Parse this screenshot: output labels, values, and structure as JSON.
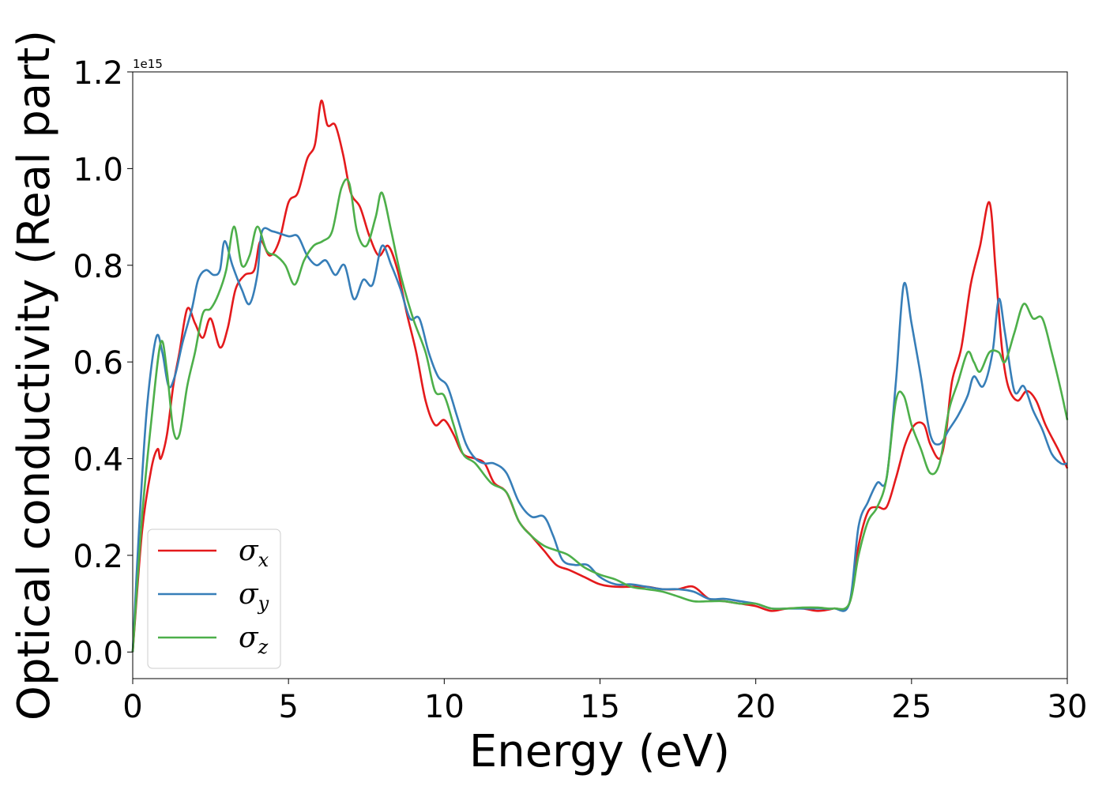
{
  "chart_data": {
    "type": "line",
    "xlabel": "Energy (eV)",
    "ylabel": "Optical conductivity (Real part)",
    "y_offset_label": "1e15",
    "xlim": [
      0,
      30
    ],
    "ylim": [
      -0.055,
      1.2
    ],
    "y_scale": 1000000000000000.0,
    "x_ticks": [
      0,
      5,
      10,
      15,
      20,
      25,
      30
    ],
    "x_tick_labels": [
      "0",
      "5",
      "10",
      "15",
      "20",
      "25",
      "30"
    ],
    "y_ticks": [
      0.0,
      0.2,
      0.4,
      0.6,
      0.8,
      1.0,
      1.2
    ],
    "y_tick_labels": [
      "0.0",
      "0.2",
      "0.4",
      "0.6",
      "0.8",
      "1.0",
      "1.2"
    ],
    "grid": false,
    "legend_position": "lower-left",
    "series": [
      {
        "name": "σx",
        "symbol": "σ",
        "subscript": "x",
        "color": "#e41a1c",
        "points": [
          [
            0,
            0.0
          ],
          [
            0.3,
            0.25
          ],
          [
            0.6,
            0.38
          ],
          [
            0.8,
            0.42
          ],
          [
            0.9,
            0.4
          ],
          [
            1.1,
            0.45
          ],
          [
            1.3,
            0.55
          ],
          [
            1.5,
            0.62
          ],
          [
            1.75,
            0.71
          ],
          [
            2.0,
            0.68
          ],
          [
            2.25,
            0.65
          ],
          [
            2.5,
            0.69
          ],
          [
            2.8,
            0.63
          ],
          [
            3.05,
            0.67
          ],
          [
            3.3,
            0.75
          ],
          [
            3.6,
            0.78
          ],
          [
            3.9,
            0.79
          ],
          [
            4.1,
            0.85
          ],
          [
            4.4,
            0.82
          ],
          [
            4.7,
            0.85
          ],
          [
            5.0,
            0.93
          ],
          [
            5.3,
            0.95
          ],
          [
            5.6,
            1.02
          ],
          [
            5.85,
            1.05
          ],
          [
            6.05,
            1.14
          ],
          [
            6.25,
            1.09
          ],
          [
            6.5,
            1.09
          ],
          [
            6.75,
            1.03
          ],
          [
            7.0,
            0.95
          ],
          [
            7.3,
            0.92
          ],
          [
            7.6,
            0.86
          ],
          [
            7.9,
            0.82
          ],
          [
            8.2,
            0.84
          ],
          [
            8.5,
            0.79
          ],
          [
            8.8,
            0.7
          ],
          [
            9.1,
            0.62
          ],
          [
            9.4,
            0.52
          ],
          [
            9.7,
            0.47
          ],
          [
            10.0,
            0.48
          ],
          [
            10.3,
            0.45
          ],
          [
            10.6,
            0.41
          ],
          [
            11.0,
            0.4
          ],
          [
            11.3,
            0.39
          ],
          [
            11.6,
            0.35
          ],
          [
            12.0,
            0.33
          ],
          [
            12.4,
            0.27
          ],
          [
            12.8,
            0.24
          ],
          [
            13.2,
            0.21
          ],
          [
            13.6,
            0.18
          ],
          [
            14.0,
            0.17
          ],
          [
            14.5,
            0.155
          ],
          [
            15.0,
            0.14
          ],
          [
            15.5,
            0.135
          ],
          [
            16.0,
            0.135
          ],
          [
            16.5,
            0.135
          ],
          [
            17.0,
            0.13
          ],
          [
            17.5,
            0.13
          ],
          [
            18.0,
            0.135
          ],
          [
            18.5,
            0.11
          ],
          [
            19.0,
            0.105
          ],
          [
            19.5,
            0.1
          ],
          [
            20.0,
            0.095
          ],
          [
            20.5,
            0.085
          ],
          [
            21.0,
            0.09
          ],
          [
            21.5,
            0.09
          ],
          [
            22.0,
            0.085
          ],
          [
            22.5,
            0.09
          ],
          [
            23.0,
            0.1
          ],
          [
            23.3,
            0.22
          ],
          [
            23.6,
            0.29
          ],
          [
            23.9,
            0.3
          ],
          [
            24.2,
            0.3
          ],
          [
            24.5,
            0.36
          ],
          [
            24.8,
            0.43
          ],
          [
            25.1,
            0.47
          ],
          [
            25.4,
            0.47
          ],
          [
            25.6,
            0.43
          ],
          [
            25.9,
            0.4
          ],
          [
            26.1,
            0.45
          ],
          [
            26.3,
            0.56
          ],
          [
            26.6,
            0.63
          ],
          [
            26.9,
            0.76
          ],
          [
            27.2,
            0.84
          ],
          [
            27.5,
            0.93
          ],
          [
            27.7,
            0.79
          ],
          [
            27.9,
            0.63
          ],
          [
            28.1,
            0.55
          ],
          [
            28.4,
            0.52
          ],
          [
            28.7,
            0.54
          ],
          [
            29.0,
            0.52
          ],
          [
            29.3,
            0.47
          ],
          [
            29.7,
            0.42
          ],
          [
            30.0,
            0.38
          ]
        ]
      },
      {
        "name": "σy",
        "symbol": "σ",
        "subscript": "y",
        "color": "#377eb8",
        "points": [
          [
            0,
            0.0
          ],
          [
            0.2,
            0.25
          ],
          [
            0.45,
            0.5
          ],
          [
            0.75,
            0.65
          ],
          [
            0.95,
            0.62
          ],
          [
            1.15,
            0.55
          ],
          [
            1.35,
            0.57
          ],
          [
            1.6,
            0.64
          ],
          [
            1.9,
            0.71
          ],
          [
            2.1,
            0.77
          ],
          [
            2.35,
            0.79
          ],
          [
            2.6,
            0.78
          ],
          [
            2.8,
            0.79
          ],
          [
            2.95,
            0.85
          ],
          [
            3.2,
            0.8
          ],
          [
            3.5,
            0.75
          ],
          [
            3.75,
            0.72
          ],
          [
            4.0,
            0.78
          ],
          [
            4.15,
            0.87
          ],
          [
            4.5,
            0.87
          ],
          [
            5.0,
            0.86
          ],
          [
            5.3,
            0.86
          ],
          [
            5.6,
            0.82
          ],
          [
            5.9,
            0.8
          ],
          [
            6.2,
            0.81
          ],
          [
            6.5,
            0.78
          ],
          [
            6.8,
            0.8
          ],
          [
            7.1,
            0.73
          ],
          [
            7.4,
            0.77
          ],
          [
            7.7,
            0.76
          ],
          [
            8.0,
            0.84
          ],
          [
            8.3,
            0.8
          ],
          [
            8.6,
            0.75
          ],
          [
            8.9,
            0.69
          ],
          [
            9.2,
            0.69
          ],
          [
            9.5,
            0.62
          ],
          [
            9.8,
            0.57
          ],
          [
            10.1,
            0.55
          ],
          [
            10.4,
            0.49
          ],
          [
            10.7,
            0.43
          ],
          [
            11.0,
            0.4
          ],
          [
            11.3,
            0.39
          ],
          [
            11.6,
            0.39
          ],
          [
            12.0,
            0.37
          ],
          [
            12.4,
            0.31
          ],
          [
            12.8,
            0.28
          ],
          [
            13.2,
            0.28
          ],
          [
            13.5,
            0.24
          ],
          [
            13.8,
            0.19
          ],
          [
            14.2,
            0.18
          ],
          [
            14.6,
            0.18
          ],
          [
            15.0,
            0.155
          ],
          [
            15.5,
            0.14
          ],
          [
            16.0,
            0.14
          ],
          [
            16.5,
            0.135
          ],
          [
            17.0,
            0.13
          ],
          [
            17.5,
            0.13
          ],
          [
            18.0,
            0.125
          ],
          [
            18.5,
            0.11
          ],
          [
            19.0,
            0.11
          ],
          [
            19.5,
            0.105
          ],
          [
            20.0,
            0.1
          ],
          [
            20.5,
            0.09
          ],
          [
            21.0,
            0.09
          ],
          [
            21.5,
            0.09
          ],
          [
            22.0,
            0.09
          ],
          [
            22.5,
            0.09
          ],
          [
            23.0,
            0.1
          ],
          [
            23.3,
            0.26
          ],
          [
            23.6,
            0.31
          ],
          [
            23.9,
            0.35
          ],
          [
            24.2,
            0.36
          ],
          [
            24.5,
            0.56
          ],
          [
            24.75,
            0.76
          ],
          [
            25.0,
            0.68
          ],
          [
            25.3,
            0.57
          ],
          [
            25.6,
            0.45
          ],
          [
            25.9,
            0.43
          ],
          [
            26.2,
            0.46
          ],
          [
            26.5,
            0.49
          ],
          [
            26.8,
            0.53
          ],
          [
            27.0,
            0.57
          ],
          [
            27.3,
            0.55
          ],
          [
            27.6,
            0.62
          ],
          [
            27.8,
            0.73
          ],
          [
            28.0,
            0.66
          ],
          [
            28.3,
            0.54
          ],
          [
            28.6,
            0.55
          ],
          [
            28.9,
            0.5
          ],
          [
            29.2,
            0.46
          ],
          [
            29.5,
            0.41
          ],
          [
            29.8,
            0.39
          ],
          [
            30.0,
            0.39
          ]
        ]
      },
      {
        "name": "σz",
        "symbol": "σ",
        "subscript": "z",
        "color": "#4daf4a",
        "points": [
          [
            0,
            0.0
          ],
          [
            0.3,
            0.28
          ],
          [
            0.6,
            0.48
          ],
          [
            0.9,
            0.64
          ],
          [
            1.1,
            0.58
          ],
          [
            1.3,
            0.46
          ],
          [
            1.5,
            0.45
          ],
          [
            1.75,
            0.55
          ],
          [
            2.0,
            0.62
          ],
          [
            2.25,
            0.7
          ],
          [
            2.5,
            0.71
          ],
          [
            2.75,
            0.74
          ],
          [
            3.0,
            0.79
          ],
          [
            3.25,
            0.88
          ],
          [
            3.5,
            0.8
          ],
          [
            3.75,
            0.82
          ],
          [
            4.0,
            0.88
          ],
          [
            4.3,
            0.83
          ],
          [
            4.6,
            0.82
          ],
          [
            4.9,
            0.8
          ],
          [
            5.2,
            0.76
          ],
          [
            5.5,
            0.81
          ],
          [
            5.8,
            0.84
          ],
          [
            6.1,
            0.85
          ],
          [
            6.4,
            0.87
          ],
          [
            6.7,
            0.96
          ],
          [
            6.95,
            0.97
          ],
          [
            7.2,
            0.87
          ],
          [
            7.5,
            0.84
          ],
          [
            7.8,
            0.9
          ],
          [
            8.0,
            0.95
          ],
          [
            8.3,
            0.87
          ],
          [
            8.6,
            0.78
          ],
          [
            9.0,
            0.69
          ],
          [
            9.4,
            0.62
          ],
          [
            9.7,
            0.54
          ],
          [
            10.0,
            0.53
          ],
          [
            10.3,
            0.47
          ],
          [
            10.6,
            0.41
          ],
          [
            11.0,
            0.39
          ],
          [
            11.5,
            0.35
          ],
          [
            12.0,
            0.33
          ],
          [
            12.4,
            0.27
          ],
          [
            12.8,
            0.24
          ],
          [
            13.2,
            0.22
          ],
          [
            13.6,
            0.21
          ],
          [
            14.0,
            0.2
          ],
          [
            14.5,
            0.175
          ],
          [
            15.0,
            0.16
          ],
          [
            15.5,
            0.15
          ],
          [
            16.0,
            0.135
          ],
          [
            16.5,
            0.13
          ],
          [
            17.0,
            0.125
          ],
          [
            17.5,
            0.115
          ],
          [
            18.0,
            0.105
          ],
          [
            18.5,
            0.105
          ],
          [
            19.0,
            0.105
          ],
          [
            19.5,
            0.1
          ],
          [
            20.0,
            0.1
          ],
          [
            20.5,
            0.09
          ],
          [
            21.0,
            0.09
          ],
          [
            21.5,
            0.092
          ],
          [
            22.0,
            0.092
          ],
          [
            22.5,
            0.09
          ],
          [
            23.0,
            0.1
          ],
          [
            23.3,
            0.2
          ],
          [
            23.6,
            0.27
          ],
          [
            23.9,
            0.3
          ],
          [
            24.2,
            0.36
          ],
          [
            24.5,
            0.52
          ],
          [
            24.75,
            0.53
          ],
          [
            25.0,
            0.47
          ],
          [
            25.3,
            0.42
          ],
          [
            25.6,
            0.37
          ],
          [
            25.9,
            0.39
          ],
          [
            26.2,
            0.5
          ],
          [
            26.5,
            0.56
          ],
          [
            26.8,
            0.62
          ],
          [
            27.0,
            0.6
          ],
          [
            27.2,
            0.58
          ],
          [
            27.5,
            0.62
          ],
          [
            27.8,
            0.62
          ],
          [
            28.0,
            0.6
          ],
          [
            28.3,
            0.66
          ],
          [
            28.6,
            0.72
          ],
          [
            28.9,
            0.69
          ],
          [
            29.2,
            0.69
          ],
          [
            29.5,
            0.62
          ],
          [
            29.8,
            0.54
          ],
          [
            30.0,
            0.48
          ]
        ]
      }
    ]
  }
}
